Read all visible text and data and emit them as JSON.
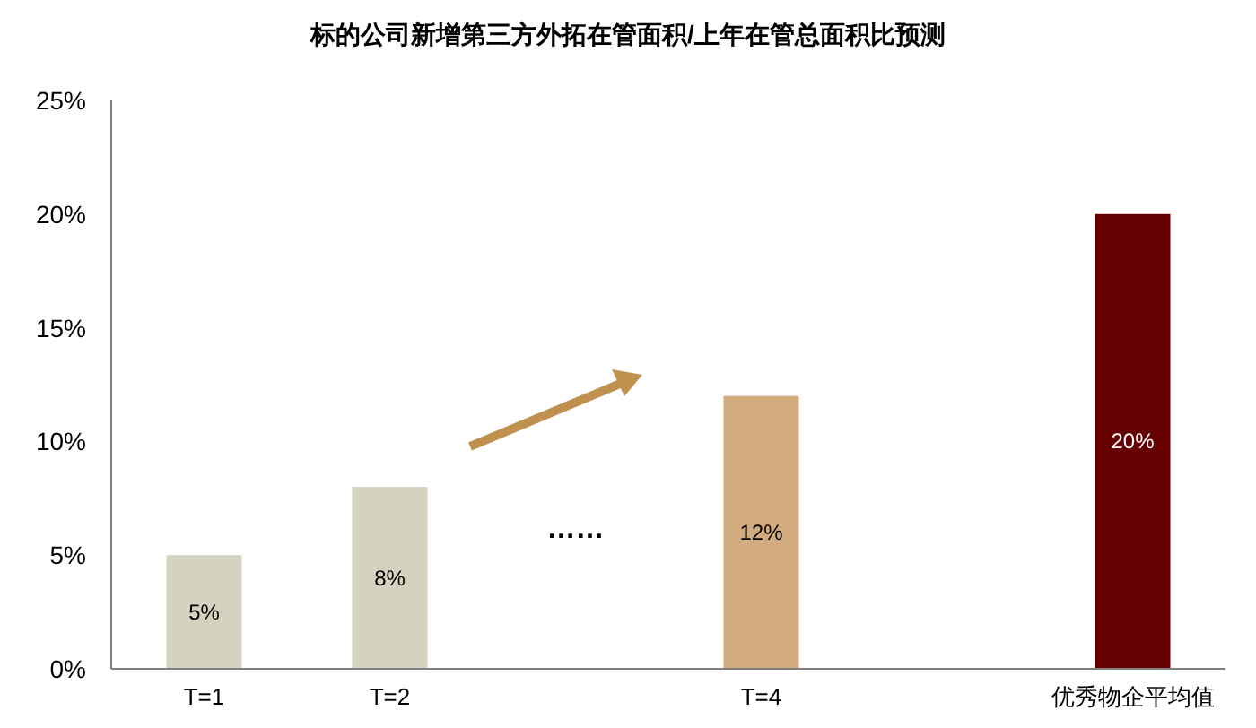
{
  "chart_data": {
    "type": "bar",
    "title": "标的公司新增第三方外拓在管面积/上年在管总面积比预测",
    "categories": [
      "T=1",
      "T=2",
      null,
      "T=4",
      null,
      "优秀物企平均值"
    ],
    "values": [
      5,
      8,
      null,
      12,
      null,
      20
    ],
    "colors": [
      "#d4d3bf",
      "#d4d3bf",
      null,
      "#d2ab7e",
      null,
      "#660000"
    ],
    "value_labels": [
      "5%",
      "8%",
      null,
      "12%",
      null,
      "20%"
    ],
    "ylim": [
      0,
      25
    ],
    "yticks": [
      {
        "value": 0,
        "label": "0%"
      },
      {
        "value": 5,
        "label": "5%"
      },
      {
        "value": 10,
        "label": "10%"
      },
      {
        "value": 15,
        "label": "15%"
      },
      {
        "value": 20,
        "label": "20%"
      },
      {
        "value": 25,
        "label": "25%"
      }
    ],
    "annotations": [
      "……"
    ]
  }
}
